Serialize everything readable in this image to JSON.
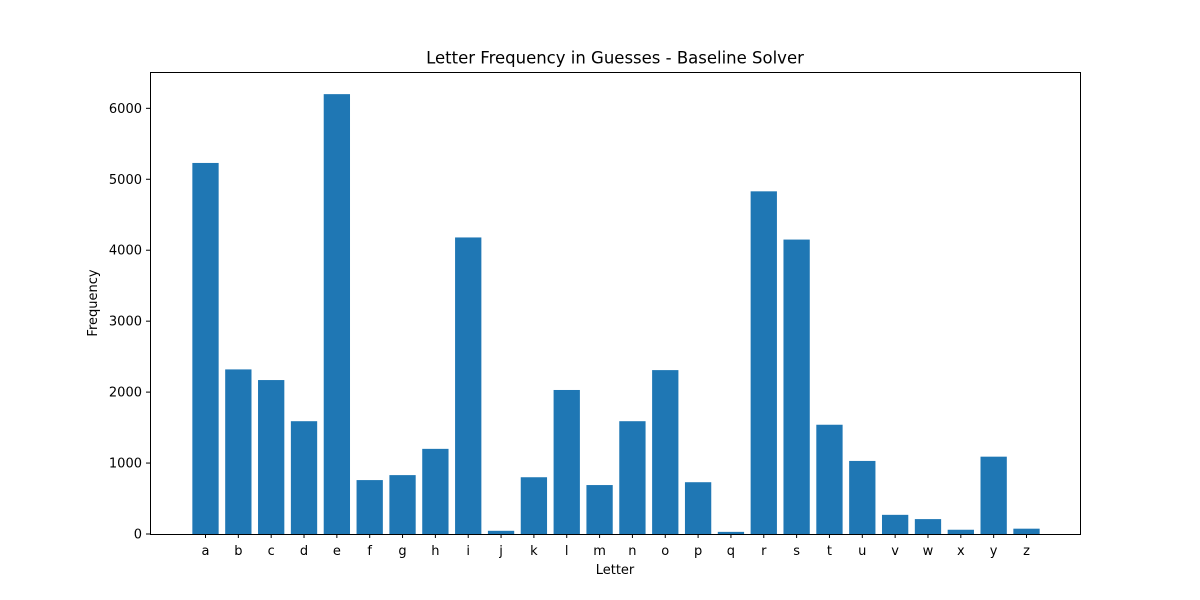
{
  "chart_data": {
    "type": "bar",
    "title": "Letter Frequency in Guesses - Baseline Solver",
    "xlabel": "Letter",
    "ylabel": "Frequency",
    "categories": [
      "a",
      "b",
      "c",
      "d",
      "e",
      "f",
      "g",
      "h",
      "i",
      "j",
      "k",
      "l",
      "m",
      "n",
      "o",
      "p",
      "q",
      "r",
      "s",
      "t",
      "u",
      "v",
      "w",
      "x",
      "y",
      "z"
    ],
    "values": [
      5230,
      2320,
      2170,
      1590,
      6200,
      760,
      830,
      1200,
      4180,
      45,
      800,
      2030,
      690,
      1590,
      2310,
      730,
      30,
      4830,
      4150,
      1540,
      1030,
      270,
      210,
      60,
      1090,
      75
    ],
    "yticks": [
      0,
      1000,
      2000,
      3000,
      4000,
      5000,
      6000
    ],
    "ylim": [
      0,
      6512
    ],
    "grid": false,
    "bar_color": "#1f77b4"
  }
}
